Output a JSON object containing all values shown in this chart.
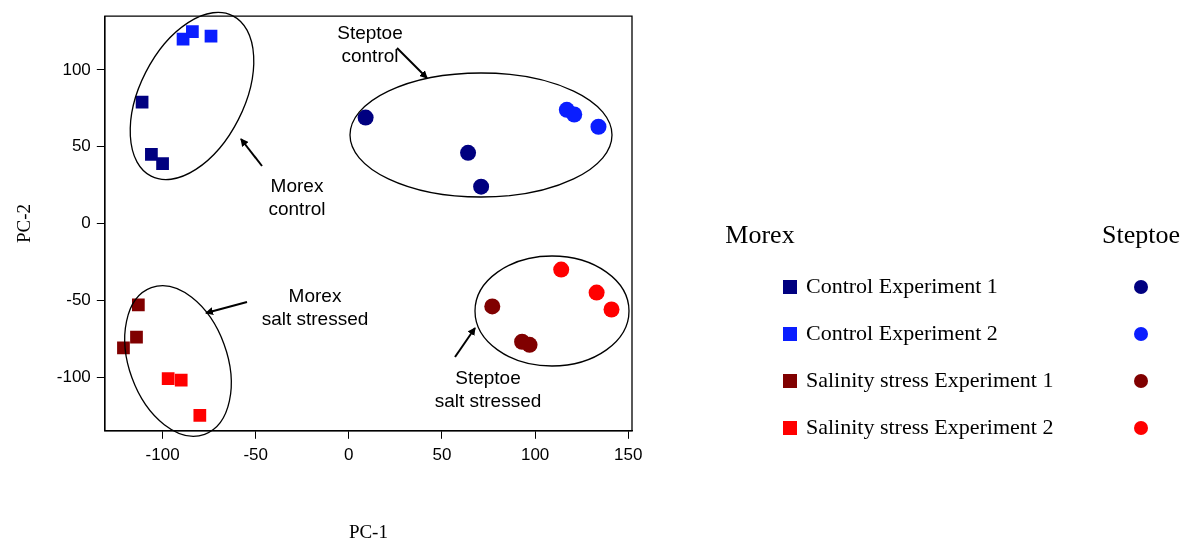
{
  "chart_data": {
    "type": "scatter",
    "xlabel": "PC-1",
    "ylabel": "PC-2",
    "xlim": [
      -131,
      152
    ],
    "ylim": [
      -135,
      135
    ],
    "xticks": [
      -100,
      -50,
      0,
      50,
      100,
      150
    ],
    "yticks": [
      -100,
      -50,
      0,
      50,
      100
    ],
    "grid": false,
    "legend": "right",
    "annotations": [
      "Morex",
      "Steptoe",
      "Steptoe\ncontrol",
      "Morex\ncontrol",
      "Morex\nsalt stressed",
      "Steptoe\nsalt stressed"
    ],
    "series": [
      {
        "name": "Control Experiment 1",
        "color": "#000080",
        "marker": "square",
        "x": [
          -111,
          -106,
          -100
        ],
        "values": [
          79,
          45,
          39
        ]
      },
      {
        "name": "Control Experiment 2",
        "color": "#0a1eff",
        "marker": "square",
        "x": [
          -89,
          -84,
          -74
        ],
        "values": [
          120,
          125,
          122
        ]
      },
      {
        "name": "Salinity stress Experiment 1",
        "color": "#800000",
        "marker": "square",
        "x": [
          -113,
          -114,
          -121
        ],
        "values": [
          -53,
          -74,
          -81
        ]
      },
      {
        "name": "Salinity stress Experiment 2",
        "color": "#ff0000",
        "marker": "square",
        "x": [
          -97,
          -90,
          -80
        ],
        "values": [
          -101,
          -102,
          -125
        ]
      },
      {
        "color": "#000080",
        "marker": "circle",
        "x": [
          9,
          64,
          71
        ],
        "values": [
          69,
          46,
          24
        ]
      },
      {
        "color": "#0a1eff",
        "marker": "circle",
        "x": [
          117,
          121,
          134
        ],
        "values": [
          74,
          71,
          63
        ]
      },
      {
        "color": "#800000",
        "marker": "circle",
        "x": [
          77,
          93,
          97
        ],
        "values": [
          -54,
          -77,
          -79
        ]
      },
      {
        "color": "#ff0000",
        "marker": "circle",
        "x": [
          114,
          133,
          141
        ],
        "values": [
          -30,
          -45,
          -56
        ]
      }
    ]
  }
}
